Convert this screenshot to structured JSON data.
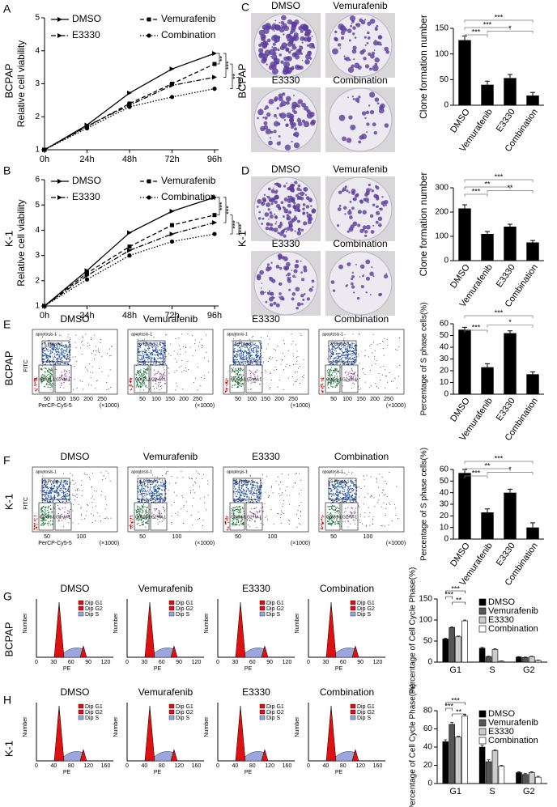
{
  "figure": {
    "panels": [
      {
        "letter": "A",
        "row_label": "BCPAP"
      },
      {
        "letter": "B",
        "row_label": "K-1"
      },
      {
        "letter": "C",
        "row_label": "BCPAP",
        "images": [
          "DMSO",
          "Vemurafenib",
          "E3330",
          "Combination"
        ]
      },
      {
        "letter": "D",
        "row_label": "K-1",
        "images": [
          "DMSO",
          "Vemurafenib",
          "E3330",
          "Combination"
        ]
      },
      {
        "letter": "E",
        "row_label": "BCPAP",
        "images": [
          "DMSO",
          "Vemurafenib",
          "E3330",
          "Combination"
        ],
        "x_label": "PerCP-Cy5-5",
        "y_label": "FITC",
        "x_unit": "(×1000)",
        "x_ticks": [
          "50",
          "100",
          "150",
          "200",
          "250"
        ],
        "gates": [
          "apoptosis-1",
          "S Phase-1",
          "G0/G1-1",
          "G2+M-1"
        ]
      },
      {
        "letter": "F",
        "row_label": "K-1",
        "images": [
          "DMSO",
          "Vemurafenib",
          "E3330",
          "Combination"
        ],
        "x_label": "PerCP-Cy5-5",
        "y_label": "FITC",
        "x_unit": "(×1000)",
        "x_ticks": [
          "50",
          "100"
        ],
        "gates": [
          "apoptosis-1",
          "S Phase-1",
          "G0/G1-1",
          "G2+M-1"
        ]
      },
      {
        "letter": "G",
        "row_label": "BCPAP",
        "images": [
          "DMSO",
          "Vemurafenib",
          "E3330",
          "Combination"
        ],
        "x_label": "PE",
        "y_label": "Number",
        "x_ticks": [
          "0",
          "30",
          "60",
          "90",
          "120"
        ],
        "legend": [
          "Dip G1",
          "Dip G2",
          "Dip S"
        ]
      },
      {
        "letter": "H",
        "row_label": "K-1",
        "images": [
          "DMSO",
          "Vemurafenib",
          "E3330",
          "Combination"
        ],
        "x_label": "PE",
        "y_label": "Number",
        "x_ticks": [
          "0",
          "40",
          "80",
          "120",
          "160"
        ],
        "legend": [
          "Dip G1",
          "Dip G2",
          "Dip S"
        ]
      }
    ]
  },
  "chart_data": [
    {
      "type": "line",
      "y_label": "Relative cell viability",
      "categories": [
        "0h",
        "24h",
        "48h",
        "72h",
        "96h"
      ],
      "ylim": [
        1,
        5
      ],
      "yticks": [
        1,
        2,
        3,
        4,
        5
      ],
      "annotations": [
        "**",
        "***",
        "**",
        "***"
      ],
      "series": [
        {
          "name": "DMSO",
          "color": "#000000",
          "dash": "solid",
          "marker": "triangle",
          "values": [
            1,
            1.75,
            2.72,
            3.45,
            3.92
          ]
        },
        {
          "name": "Vemurafenib",
          "color": "#000000",
          "dash": "dashed",
          "marker": "square",
          "values": [
            1,
            1.7,
            2.4,
            3.0,
            3.6
          ]
        },
        {
          "name": "E3330",
          "color": "#000000",
          "dash": "dashdot",
          "marker": "triangle",
          "values": [
            1,
            1.72,
            2.35,
            2.95,
            3.2
          ]
        },
        {
          "name": "Combination",
          "color": "#000000",
          "dash": "dotted",
          "marker": "circle",
          "values": [
            1,
            1.65,
            2.3,
            2.6,
            2.85
          ]
        }
      ]
    },
    {
      "type": "line",
      "y_label": "Relative cell viability",
      "categories": [
        "0h",
        "24h",
        "48h",
        "72h",
        "96h"
      ],
      "ylim": [
        1,
        6
      ],
      "yticks": [
        1,
        2,
        3,
        4,
        5,
        6
      ],
      "annotations": [
        "***",
        "***",
        "***",
        "***"
      ],
      "series": [
        {
          "name": "DMSO",
          "color": "#000000",
          "dash": "solid",
          "marker": "triangle",
          "values": [
            1,
            2.4,
            3.9,
            4.75,
            5.3
          ]
        },
        {
          "name": "Vemurafenib",
          "color": "#000000",
          "dash": "dashed",
          "marker": "square",
          "values": [
            1,
            2.3,
            3.35,
            4.2,
            4.6
          ]
        },
        {
          "name": "E3330",
          "color": "#000000",
          "dash": "dashdot",
          "marker": "triangle",
          "values": [
            1,
            2.2,
            3.2,
            3.85,
            4.3
          ]
        },
        {
          "name": "Combination",
          "color": "#000000",
          "dash": "dotted",
          "marker": "circle",
          "values": [
            1,
            2.05,
            3.0,
            3.55,
            3.85
          ]
        }
      ]
    },
    {
      "type": "bar",
      "y_label": "Clone formation number",
      "categories": [
        "DMSO",
        "Vemurafenib",
        "E3330",
        "Combination"
      ],
      "values": [
        127,
        40,
        53,
        19
      ],
      "errors": [
        8,
        7,
        7,
        6
      ],
      "color": "#000000",
      "ylim": [
        0,
        150
      ],
      "yticks": [
        0,
        50,
        100,
        150
      ],
      "annotations": [
        "***",
        "***",
        "***",
        "*"
      ]
    },
    {
      "type": "bar",
      "y_label": "Clone formation number",
      "categories": [
        "DMSO",
        "Vemurafenib",
        "E3330",
        "Combination"
      ],
      "values": [
        215,
        110,
        140,
        75
      ],
      "errors": [
        15,
        10,
        10,
        8
      ],
      "color": "#000000",
      "ylim": [
        0,
        300
      ],
      "yticks": [
        0,
        100,
        200,
        300
      ],
      "annotations": [
        "***",
        "**",
        "***",
        "**"
      ]
    },
    {
      "type": "bar",
      "y_label": "Percentage of S phase cells(%)",
      "categories": [
        "DMSO",
        "Vemurafenib",
        "E3330",
        "Combination"
      ],
      "values": [
        55,
        23,
        52,
        17
      ],
      "errors": [
        2,
        3,
        2,
        2
      ],
      "color": "#000000",
      "ylim": [
        0,
        60
      ],
      "yticks": [
        0,
        10,
        20,
        30,
        40,
        50,
        60
      ],
      "annotations": [
        "***",
        "***",
        "*"
      ]
    },
    {
      "type": "bar",
      "y_label": "Percentage of S phase cells(%)",
      "categories": [
        "DMSO",
        "Vemurafenib",
        "E3330",
        "Combination"
      ],
      "values": [
        57,
        23,
        40,
        10
      ],
      "errors": [
        3,
        3,
        3,
        4
      ],
      "color": "#000000",
      "ylim": [
        0,
        60
      ],
      "yticks": [
        0,
        10,
        20,
        30,
        40,
        50,
        60
      ],
      "annotations": [
        "***",
        "**",
        "***",
        "*"
      ]
    },
    {
      "type": "grouped_bar",
      "y_label": "Percentage of Cell Cycle Phase(%)",
      "categories": [
        "G1",
        "S",
        "G2"
      ],
      "ylim": [
        0,
        150
      ],
      "yticks": [
        0,
        50,
        100,
        150
      ],
      "annotations": [
        "***",
        "***",
        "**"
      ],
      "series": [
        {
          "name": "DMSO",
          "color": "#000000",
          "values": [
            55,
            33,
            12
          ],
          "errors": [
            2,
            2,
            1
          ]
        },
        {
          "name": "Vemurafenib",
          "color": "#555555",
          "values": [
            82,
            13,
            11
          ],
          "errors": [
            2,
            1,
            1
          ]
        },
        {
          "name": "E3330",
          "color": "#cccccc",
          "values": [
            60,
            30,
            13
          ],
          "errors": [
            2,
            2,
            1
          ]
        },
        {
          "name": "Combination",
          "color": "#ffffff",
          "values": [
            98,
            2,
            4
          ],
          "errors": [
            2,
            1,
            1
          ]
        }
      ]
    },
    {
      "type": "grouped_bar",
      "y_label": "Percentage of Cell Cycle Phase(%)",
      "categories": [
        "G1",
        "S",
        "G2"
      ],
      "ylim": [
        0,
        80
      ],
      "yticks": [
        0,
        20,
        40,
        60,
        80
      ],
      "annotations": [
        "***",
        "***",
        "**"
      ],
      "series": [
        {
          "name": "DMSO",
          "color": "#000000",
          "values": [
            46,
            40,
            12
          ],
          "errors": [
            2,
            2,
            1
          ]
        },
        {
          "name": "Vemurafenib",
          "color": "#555555",
          "values": [
            65,
            24,
            10
          ],
          "errors": [
            2,
            2,
            1
          ]
        },
        {
          "name": "E3330",
          "color": "#cccccc",
          "values": [
            51,
            36,
            12
          ],
          "errors": [
            1,
            1,
            1
          ]
        },
        {
          "name": "Combination",
          "color": "#ffffff",
          "values": [
            74,
            19,
            7
          ],
          "errors": [
            2,
            1,
            1
          ]
        }
      ]
    }
  ]
}
